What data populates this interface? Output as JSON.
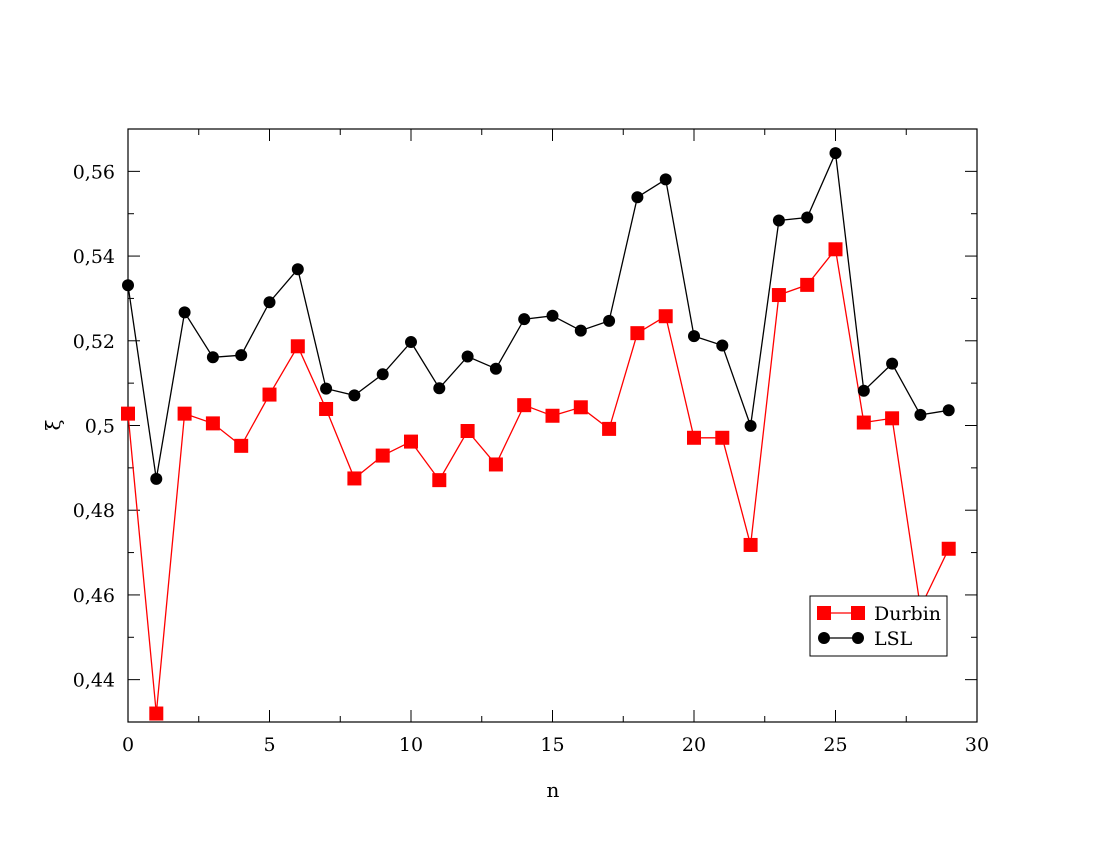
{
  "chart_data": {
    "type": "line",
    "title": "",
    "xlabel": "n",
    "ylabel": "ξ",
    "xlim": [
      0,
      30
    ],
    "ylim": [
      0.43,
      0.57
    ],
    "x_ticks": [
      0,
      5,
      10,
      15,
      20,
      25,
      30
    ],
    "x_tick_labels": [
      "0",
      "5",
      "10",
      "15",
      "20",
      "25",
      "30"
    ],
    "y_ticks": [
      0.44,
      0.46,
      0.48,
      0.5,
      0.52,
      0.54,
      0.56
    ],
    "y_tick_labels": [
      "0,44",
      "0,46",
      "0,48",
      "0,5",
      "0,52",
      "0,54",
      "0,56"
    ],
    "grid": false,
    "legend_position": "bottom-right",
    "x": [
      0,
      1,
      2,
      3,
      4,
      5,
      6,
      7,
      8,
      9,
      10,
      11,
      12,
      13,
      14,
      15,
      16,
      17,
      18,
      19,
      20,
      21,
      22,
      23,
      24,
      25,
      26,
      27,
      28,
      29
    ],
    "series": [
      {
        "name": "Durbin",
        "color": "#ff0000",
        "marker": "square",
        "values": [
          0.5028,
          0.432,
          0.5028,
          0.5005,
          0.4952,
          0.5073,
          0.5187,
          0.5039,
          0.4875,
          0.4929,
          0.4962,
          0.4871,
          0.4987,
          0.4908,
          0.5048,
          0.5023,
          0.5043,
          0.4992,
          0.5218,
          0.5258,
          0.4971,
          0.4971,
          0.4718,
          0.5308,
          0.5332,
          0.5416,
          0.5007,
          0.5017,
          0.457,
          0.4709
        ]
      },
      {
        "name": "LSL",
        "color": "#000000",
        "marker": "circle",
        "values": [
          0.5331,
          0.4874,
          0.5267,
          0.5161,
          0.5166,
          0.5291,
          0.5369,
          0.5087,
          0.5071,
          0.5121,
          0.5197,
          0.5088,
          0.5163,
          0.5134,
          0.5251,
          0.5259,
          0.5224,
          0.5247,
          0.5539,
          0.5581,
          0.5211,
          0.5189,
          0.4999,
          0.5484,
          0.5491,
          0.5643,
          0.5082,
          0.5146,
          0.5025,
          0.5036
        ]
      }
    ]
  }
}
